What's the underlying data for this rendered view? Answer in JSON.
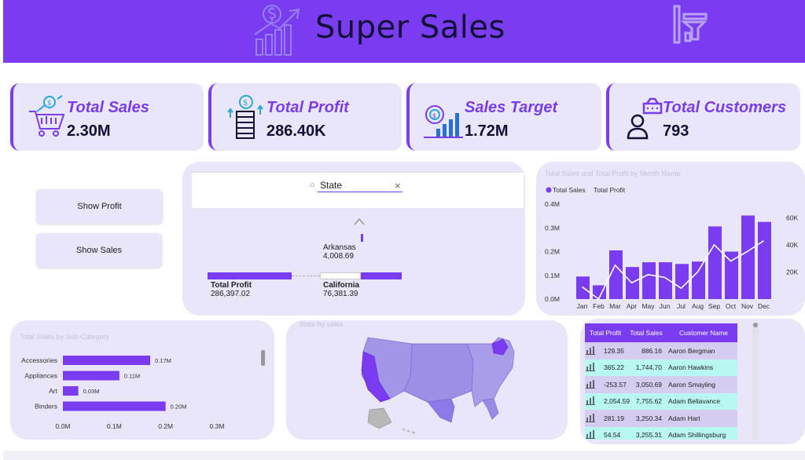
{
  "header": {
    "title": "Super Sales",
    "logo_icon": "sales-growth-icon",
    "filter_icon": "filter-panel-icon",
    "background": "#7a3cf0"
  },
  "kpis": [
    {
      "label": "Total Sales",
      "value": "2.30M",
      "icon": "shopping-cart-icon"
    },
    {
      "label": "Total Profit",
      "value": "286.40K",
      "icon": "coin-stack-icon"
    },
    {
      "label": "Sales Target",
      "value": "1.72M",
      "icon": "target-chart-icon"
    },
    {
      "label": "Total Customers",
      "value": "793",
      "icon": "customer-icon"
    }
  ],
  "buttons": {
    "show_profit": "Show Profit",
    "show_sales": "Show Sales"
  },
  "decomposition": {
    "slicer_label": "State",
    "up_label": "^",
    "root": {
      "label": "Total Profit",
      "value": "286,397.02"
    },
    "node_arkansas": {
      "label": "Arkansas",
      "value": "4,008.69"
    },
    "node_california": {
      "label": "California",
      "value": "76,381.39"
    }
  },
  "monthly_chart": {
    "legend_sales": "Total Sales",
    "legend_profit": "Total Profit"
  },
  "subcat_chart": {
    "title": "Total Sales by Sub-Category"
  },
  "map": {
    "title": "State by sales"
  },
  "table": {
    "columns": [
      "Total Profit",
      "Total Sales",
      "Customer Name"
    ],
    "rows": [
      {
        "profit": "129.35",
        "sales": "886.16",
        "name": "Aaron Bergman"
      },
      {
        "profit": "365.22",
        "sales": "1,744.70",
        "name": "Aaron Hawkins"
      },
      {
        "profit": "-253.57",
        "sales": "3,050.69",
        "name": "Aaron Smayling"
      },
      {
        "profit": "2,054.59",
        "sales": "7,755.62",
        "name": "Adam Bellavance"
      },
      {
        "profit": "281.19",
        "sales": "3,250.34",
        "name": "Adam Hart"
      },
      {
        "profit": "54.54",
        "sales": "3,255.31",
        "name": "Adam Shillingsburg"
      }
    ],
    "row_colors": [
      "#d5ccf0",
      "#b9f7f3",
      "#d5ccf0",
      "#b9f7f3",
      "#d5ccf0",
      "#b9f7f3"
    ]
  },
  "chart_data": [
    {
      "type": "bar",
      "title": "Total Sales and Total Profit by Month Name",
      "categories": [
        "Jan",
        "Feb",
        "Mar",
        "Apr",
        "May",
        "Jun",
        "Jul",
        "Aug",
        "Sep",
        "Oct",
        "Nov",
        "Dec"
      ],
      "series": [
        {
          "name": "Total Sales",
          "type": "bar",
          "axis": "left",
          "values": [
            0.095,
            0.058,
            0.205,
            0.135,
            0.155,
            0.155,
            0.148,
            0.158,
            0.306,
            0.2,
            0.352,
            0.325
          ]
        },
        {
          "name": "Total Profit",
          "type": "line",
          "axis": "right",
          "values": [
            9000,
            0,
            25000,
            12000,
            18000,
            16000,
            8000,
            20000,
            40000,
            28000,
            35000,
            43000
          ]
        }
      ],
      "yticks_left": [
        "0.0M",
        "0.1M",
        "0.2M",
        "0.3M",
        "0.4M"
      ],
      "ylim_left": [
        0,
        0.4
      ],
      "yticks_right": [
        "20K",
        "40K",
        "60K"
      ],
      "ylim_right": [
        0,
        70000
      ],
      "legend": "top-left",
      "colors": {
        "bar": "#7a3cf0",
        "line": "#ffffff"
      }
    },
    {
      "type": "bar",
      "orientation": "horizontal",
      "title": "Total Sales by Sub-Category",
      "categories": [
        "Accessories",
        "Appliances",
        "Art",
        "Binders"
      ],
      "values": [
        0.17,
        0.11,
        0.03,
        0.2
      ],
      "data_labels": [
        "0.17M",
        "0.11M",
        "0.03M",
        "0.20M"
      ],
      "xticks": [
        "0.0M",
        "0.1M",
        "0.2M",
        "0.3M"
      ],
      "xlim": [
        0,
        0.3
      ],
      "colors": {
        "bar": "#7a3cf0"
      }
    }
  ]
}
